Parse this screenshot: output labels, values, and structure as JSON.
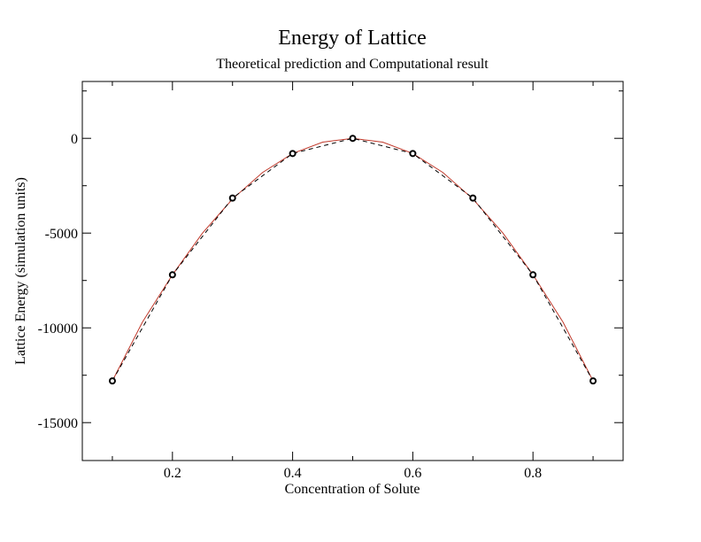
{
  "chart_data": {
    "type": "line",
    "title": "Energy of Lattice",
    "subtitle": "Theoretical prediction and Computational result",
    "xlabel": "Concentration of Solute",
    "ylabel": "Lattice Energy (simulation units)",
    "xlim": [
      0.05,
      0.95
    ],
    "ylim": [
      -17000,
      3000
    ],
    "xticks": [
      0.2,
      0.4,
      0.6,
      0.8
    ],
    "xtick_labels": [
      "0.2",
      "0.4",
      "0.6",
      "0.8"
    ],
    "yticks": [
      0,
      -5000,
      -10000,
      -15000
    ],
    "ytick_labels": [
      "0",
      "-5000",
      "-10000",
      "-15000"
    ],
    "grid": false,
    "series": [
      {
        "style": "solid",
        "color": "#c0392b",
        "x": [
          0.1,
          0.15,
          0.2,
          0.25,
          0.3,
          0.35,
          0.4,
          0.45,
          0.5,
          0.55,
          0.6,
          0.65,
          0.7,
          0.75,
          0.8,
          0.85,
          0.9
        ],
        "y": [
          -12800,
          -9700,
          -7200,
          -5000,
          -3200,
          -1800,
          -800,
          -200,
          0,
          -200,
          -800,
          -1800,
          -3200,
          -5000,
          -7200,
          -9700,
          -12800
        ]
      },
      {
        "style": "dashed",
        "color": "#000000",
        "marker": "circle",
        "x": [
          0.1,
          0.2,
          0.3,
          0.4,
          0.5,
          0.6,
          0.7,
          0.8,
          0.9
        ],
        "y": [
          -12800,
          -7200,
          -3150,
          -800,
          0,
          -800,
          -3150,
          -7200,
          -12800
        ]
      }
    ]
  }
}
